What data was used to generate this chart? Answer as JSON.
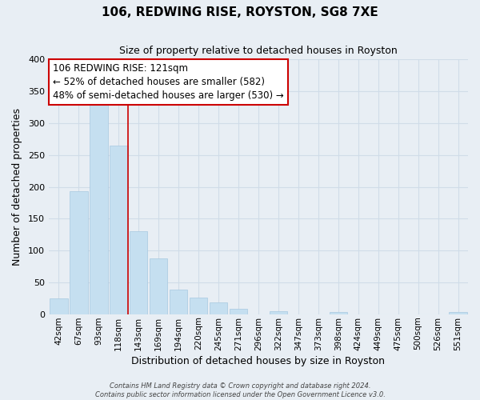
{
  "title": "106, REDWING RISE, ROYSTON, SG8 7XE",
  "subtitle": "Size of property relative to detached houses in Royston",
  "xlabel": "Distribution of detached houses by size in Royston",
  "ylabel": "Number of detached properties",
  "bar_labels": [
    "42sqm",
    "67sqm",
    "93sqm",
    "118sqm",
    "143sqm",
    "169sqm",
    "194sqm",
    "220sqm",
    "245sqm",
    "271sqm",
    "296sqm",
    "322sqm",
    "347sqm",
    "373sqm",
    "398sqm",
    "424sqm",
    "449sqm",
    "475sqm",
    "500sqm",
    "526sqm",
    "551sqm"
  ],
  "bar_values": [
    25,
    193,
    330,
    265,
    130,
    87,
    38,
    26,
    18,
    8,
    0,
    5,
    0,
    0,
    3,
    0,
    0,
    0,
    0,
    0,
    3
  ],
  "bar_color": "#c5dff0",
  "bar_edge_color": "#a8c8e0",
  "ylim": [
    0,
    400
  ],
  "yticks": [
    0,
    50,
    100,
    150,
    200,
    250,
    300,
    350,
    400
  ],
  "annotation_line1": "106 REDWING RISE: 121sqm",
  "annotation_line2": "← 52% of detached houses are smaller (582)",
  "annotation_line3": "48% of semi-detached houses are larger (530) →",
  "annotation_box_color": "white",
  "annotation_box_edgecolor": "#cc0000",
  "property_bar_index": 3,
  "vline_color": "#cc0000",
  "footer_line1": "Contains HM Land Registry data © Crown copyright and database right 2024.",
  "footer_line2": "Contains public sector information licensed under the Open Government Licence v3.0.",
  "grid_color": "#d0dce8",
  "background_color": "#e8eef4",
  "plot_bg_color": "#e8eef4",
  "title_fontsize": 11,
  "subtitle_fontsize": 9,
  "ylabel_text": "Number of detached properties"
}
